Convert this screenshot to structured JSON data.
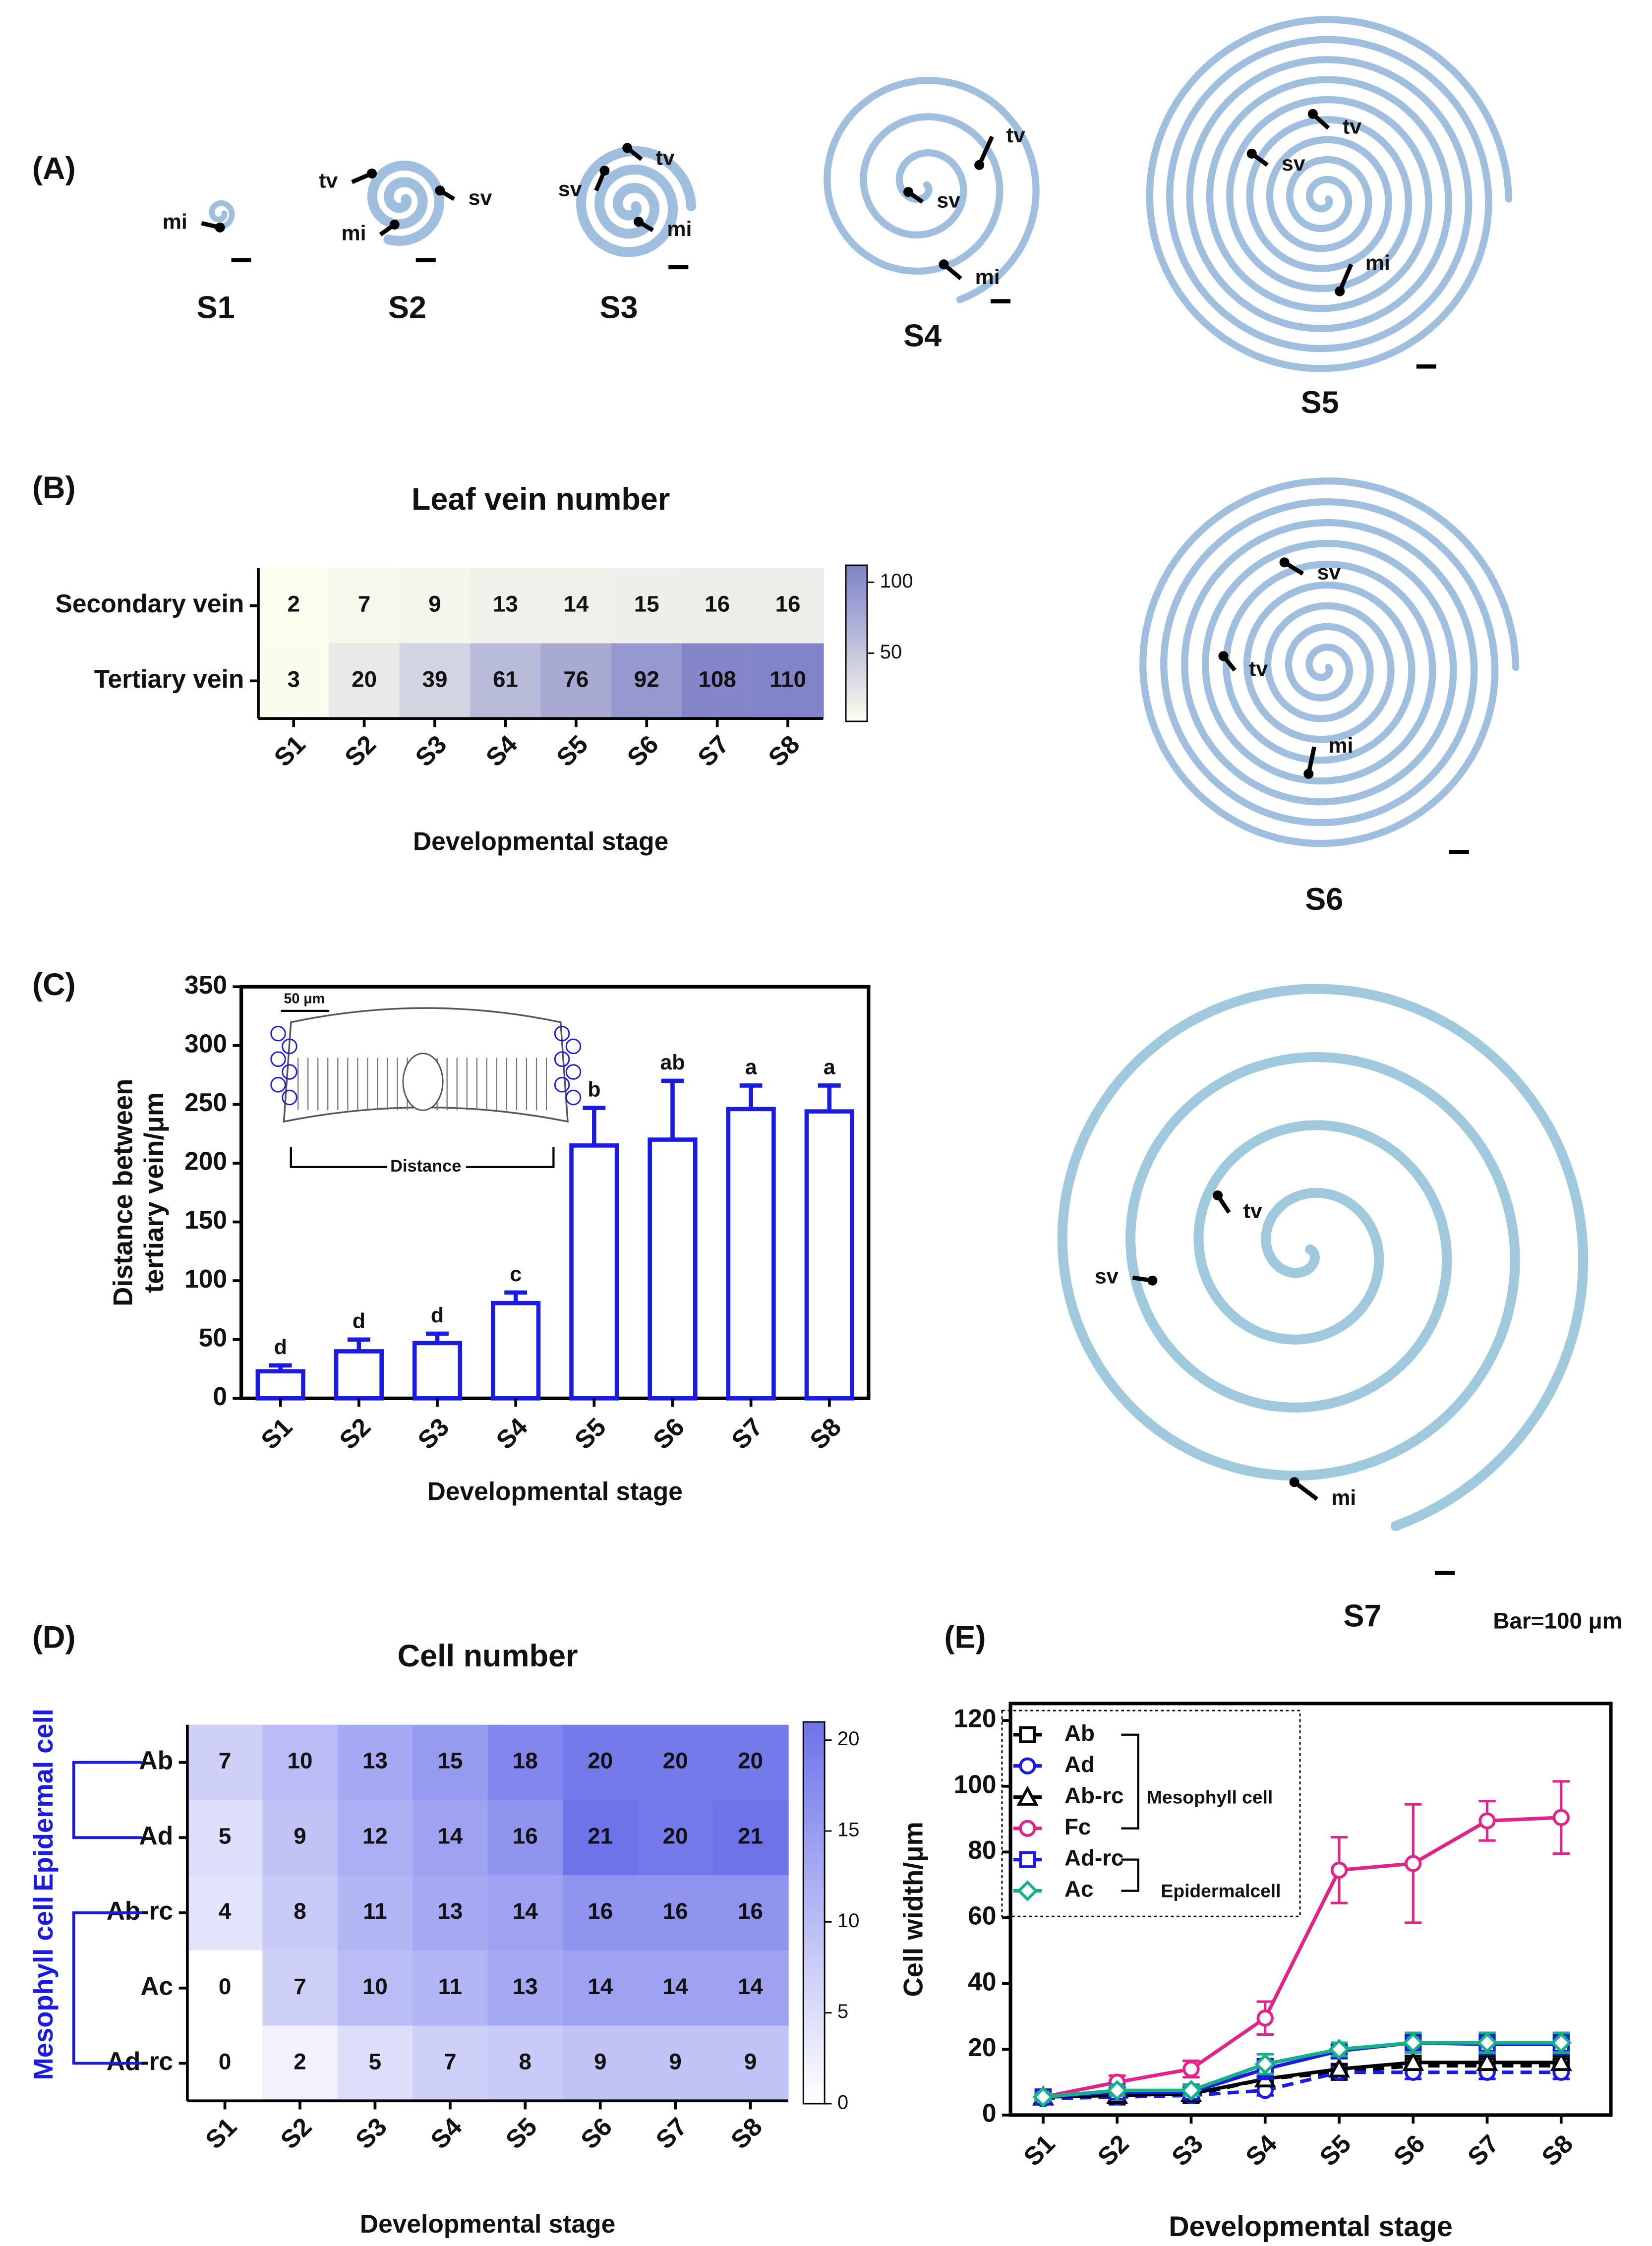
{
  "panel_labels": [
    "(A)",
    "(B)",
    "(C)",
    "(D)",
    "(E)"
  ],
  "micrographs": [
    {
      "stage": "S1",
      "labels": [
        "mi"
      ]
    },
    {
      "stage": "S2",
      "labels": [
        "tv",
        "sv",
        "mi"
      ]
    },
    {
      "stage": "S3",
      "labels": [
        "sv",
        "tv",
        "mi"
      ]
    },
    {
      "stage": "S4",
      "labels": [
        "tv",
        "sv",
        "mi"
      ]
    },
    {
      "stage": "S5",
      "labels": [
        "tv",
        "sv",
        "mi"
      ]
    },
    {
      "stage": "S6",
      "labels": [
        "sv",
        "tv",
        "mi"
      ]
    },
    {
      "stage": "S7",
      "labels": [
        "tv",
        "sv",
        "mi"
      ]
    }
  ],
  "scale_bar_text": "Bar=100 μm",
  "chart_data": [
    {
      "type": "heatmap",
      "title": "Leaf vein number",
      "x_label": "Developmental stage",
      "categories": [
        "S1",
        "S2",
        "S3",
        "S4",
        "S5",
        "S6",
        "S7",
        "S8"
      ],
      "rows": [
        "Secondary vein",
        "Tertiary vein"
      ],
      "values": [
        [
          2,
          7,
          9,
          13,
          14,
          15,
          16,
          16
        ],
        [
          3,
          20,
          39,
          61,
          76,
          92,
          108,
          110
        ]
      ],
      "colormap": [
        "#fdfdee",
        "#7f82c8"
      ],
      "zlim": [
        2,
        112
      ],
      "cbar_ticks": [
        50,
        100
      ]
    },
    {
      "type": "bar",
      "x_label": "Developmental stage",
      "y_label": [
        "Distance between",
        "tertiary vein/μm"
      ],
      "categories": [
        "S1",
        "S2",
        "S3",
        "S4",
        "S5",
        "S6",
        "S7",
        "S8"
      ],
      "values": [
        23,
        40,
        47,
        81,
        215,
        220,
        246,
        244
      ],
      "errors": [
        5,
        10,
        8,
        9,
        32,
        50,
        20,
        22
      ],
      "annotations": [
        "d",
        "d",
        "d",
        "c",
        "b",
        "ab",
        "a",
        "a"
      ],
      "color": "#1a1ae0",
      "ylim": [
        0,
        350
      ],
      "yticks": [
        0,
        50,
        100,
        150,
        200,
        250,
        300,
        350
      ],
      "inset": {
        "scale": "50 μm",
        "label": "Distance"
      }
    },
    {
      "type": "heatmap",
      "title": "Cell number",
      "x_label": "Developmental stage",
      "categories": [
        "S1",
        "S2",
        "S3",
        "S4",
        "S5",
        "S6",
        "S7",
        "S8"
      ],
      "rows": [
        "Ab",
        "Ad",
        "Ab-rc",
        "Ac",
        "Ad-rc"
      ],
      "row_groups": [
        "Epidermal cell",
        "Mesophyll cell"
      ],
      "values": [
        [
          7,
          10,
          13,
          15,
          18,
          20,
          20,
          20
        ],
        [
          5,
          9,
          12,
          14,
          16,
          21,
          20,
          21
        ],
        [
          4,
          8,
          11,
          13,
          14,
          16,
          16,
          16
        ],
        [
          0,
          7,
          10,
          11,
          13,
          14,
          14,
          14
        ],
        [
          0,
          2,
          5,
          7,
          8,
          9,
          9,
          9
        ]
      ],
      "colormap": [
        "#ffffff",
        "#6e73ea"
      ],
      "zlim": [
        0,
        21
      ],
      "cbar_ticks": [
        0,
        5,
        10,
        15,
        20
      ]
    },
    {
      "type": "line",
      "x_label": "Developmental stage",
      "y_label": "Cell width/μm",
      "categories": [
        "S1",
        "S2",
        "S3",
        "S4",
        "S5",
        "S6",
        "S7",
        "S8"
      ],
      "ylim": [
        0,
        120
      ],
      "yticks": [
        0,
        20,
        40,
        60,
        80,
        100,
        120
      ],
      "legend_groups": [
        "Mesophyll cell",
        "Epidermalcell"
      ],
      "series": [
        {
          "name": "Ab",
          "color": "#000000",
          "marker": "square",
          "dashed": true,
          "values": [
            5.5,
            5.5,
            6,
            11,
            13,
            15,
            15,
            15
          ],
          "errors": [
            1,
            1,
            1,
            2,
            1.5,
            2,
            2,
            2
          ]
        },
        {
          "name": "Ad",
          "color": "#1a1ae0",
          "marker": "circle",
          "dashed": true,
          "values": [
            5,
            5.5,
            6,
            7.5,
            13,
            13,
            13,
            13
          ],
          "errors": [
            1,
            1,
            1,
            1.5,
            1.5,
            2,
            2,
            2
          ]
        },
        {
          "name": "Ab-rc",
          "color": "#000000",
          "marker": "triangle",
          "dashed": false,
          "values": [
            5.5,
            6,
            6.5,
            11,
            14,
            16,
            16,
            16
          ],
          "errors": [
            1,
            1,
            1,
            2,
            1.5,
            2,
            2,
            2
          ]
        },
        {
          "name": "Fc",
          "color": "#e0258a",
          "marker": "circle",
          "dashed": false,
          "values": [
            5.5,
            10,
            14,
            29.5,
            74.5,
            76.5,
            89.5,
            90.5
          ],
          "errors": [
            1,
            2,
            2.5,
            5,
            10,
            18,
            6,
            11
          ]
        },
        {
          "name": "Ad-rc",
          "color": "#1a1ae0",
          "marker": "square",
          "dashed": false,
          "values": [
            5.5,
            7,
            7,
            14,
            19.5,
            22,
            21.5,
            21.5
          ],
          "errors": [
            1,
            1.5,
            1.5,
            3,
            2,
            3,
            3,
            3
          ]
        },
        {
          "name": "Ac",
          "color": "#16b08a",
          "marker": "diamond",
          "dashed": false,
          "values": [
            5.5,
            7.5,
            7.5,
            15.5,
            20,
            22,
            22,
            22
          ],
          "errors": [
            1,
            1.5,
            1.5,
            3,
            2,
            3,
            3,
            3
          ]
        }
      ]
    }
  ]
}
